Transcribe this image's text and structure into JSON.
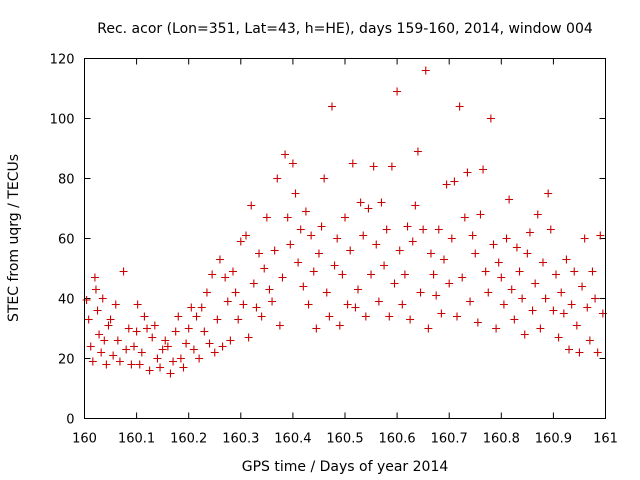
{
  "chart_data": {
    "type": "scatter",
    "title": "Rec. acor (Lon=351, Lat=43, h=HE), days 159-160, 2014, window 004",
    "xlabel": "GPS time / Days of year 2014",
    "ylabel": "STEC from uqrg / TECUs",
    "xlim": [
      160,
      161
    ],
    "ylim": [
      0,
      120
    ],
    "x_ticks": [
      "160",
      "160.1",
      "160.2",
      "160.3",
      "160.4",
      "160.5",
      "160.6",
      "160.7",
      "160.8",
      "160.9",
      "161"
    ],
    "y_ticks": [
      "0",
      "20",
      "40",
      "60",
      "80",
      "100",
      "120"
    ],
    "grid": false,
    "legend": "none",
    "marker": "plus",
    "color": "#cc0000",
    "series": [
      {
        "points": [
          [
            160.004,
            39.5
          ],
          [
            160.008,
            33
          ],
          [
            160.012,
            24
          ],
          [
            160.016,
            19
          ],
          [
            160.02,
            47
          ],
          [
            160.022,
            43
          ],
          [
            160.025,
            36
          ],
          [
            160.028,
            28
          ],
          [
            160.032,
            22
          ],
          [
            160.035,
            40
          ],
          [
            160.038,
            26
          ],
          [
            160.042,
            18
          ],
          [
            160.046,
            31
          ],
          [
            160.05,
            33
          ],
          [
            160.055,
            21
          ],
          [
            160.06,
            38
          ],
          [
            160.064,
            26
          ],
          [
            160.068,
            19
          ],
          [
            160.075,
            49
          ],
          [
            160.08,
            23
          ],
          [
            160.085,
            30
          ],
          [
            160.09,
            18
          ],
          [
            160.095,
            24
          ],
          [
            160.1,
            29
          ],
          [
            160.102,
            38
          ],
          [
            160.106,
            18
          ],
          [
            160.11,
            22
          ],
          [
            160.115,
            34
          ],
          [
            160.12,
            30
          ],
          [
            160.125,
            16
          ],
          [
            160.13,
            27
          ],
          [
            160.135,
            31
          ],
          [
            160.14,
            20
          ],
          [
            160.145,
            17
          ],
          [
            160.15,
            23
          ],
          [
            160.155,
            26
          ],
          [
            160.16,
            24
          ],
          [
            160.165,
            15
          ],
          [
            160.17,
            19
          ],
          [
            160.175,
            29
          ],
          [
            160.18,
            34
          ],
          [
            160.185,
            20
          ],
          [
            160.19,
            17
          ],
          [
            160.195,
            25
          ],
          [
            160.2,
            30
          ],
          [
            160.205,
            37
          ],
          [
            160.21,
            23
          ],
          [
            160.215,
            34
          ],
          [
            160.22,
            20
          ],
          [
            160.225,
            37
          ],
          [
            160.23,
            29
          ],
          [
            160.235,
            42
          ],
          [
            160.24,
            25
          ],
          [
            160.245,
            48
          ],
          [
            160.25,
            22
          ],
          [
            160.255,
            33
          ],
          [
            160.26,
            53
          ],
          [
            160.265,
            24
          ],
          [
            160.27,
            47
          ],
          [
            160.275,
            39
          ],
          [
            160.28,
            26
          ],
          [
            160.285,
            49
          ],
          [
            160.29,
            42
          ],
          [
            160.295,
            33
          ],
          [
            160.3,
            59
          ],
          [
            160.305,
            38
          ],
          [
            160.31,
            61
          ],
          [
            160.315,
            27
          ],
          [
            160.32,
            71
          ],
          [
            160.325,
            45
          ],
          [
            160.33,
            37
          ],
          [
            160.335,
            55
          ],
          [
            160.34,
            34
          ],
          [
            160.345,
            50
          ],
          [
            160.35,
            67
          ],
          [
            160.355,
            43
          ],
          [
            160.36,
            39
          ],
          [
            160.365,
            56
          ],
          [
            160.37,
            80
          ],
          [
            160.375,
            31
          ],
          [
            160.38,
            47
          ],
          [
            160.385,
            88
          ],
          [
            160.39,
            67
          ],
          [
            160.395,
            58
          ],
          [
            160.4,
            85
          ],
          [
            160.405,
            75
          ],
          [
            160.41,
            52
          ],
          [
            160.415,
            63
          ],
          [
            160.42,
            44
          ],
          [
            160.425,
            69
          ],
          [
            160.43,
            38
          ],
          [
            160.435,
            61
          ],
          [
            160.44,
            49
          ],
          [
            160.445,
            30
          ],
          [
            160.45,
            55
          ],
          [
            160.455,
            64
          ],
          [
            160.46,
            80
          ],
          [
            160.465,
            42
          ],
          [
            160.47,
            34
          ],
          [
            160.475,
            104
          ],
          [
            160.48,
            51
          ],
          [
            160.485,
            60
          ],
          [
            160.49,
            31
          ],
          [
            160.495,
            48
          ],
          [
            160.5,
            67
          ],
          [
            160.505,
            38
          ],
          [
            160.51,
            56
          ],
          [
            160.515,
            85
          ],
          [
            160.52,
            37
          ],
          [
            160.525,
            43
          ],
          [
            160.53,
            72
          ],
          [
            160.535,
            61
          ],
          [
            160.54,
            34
          ],
          [
            160.545,
            70
          ],
          [
            160.55,
            48
          ],
          [
            160.555,
            84
          ],
          [
            160.56,
            58
          ],
          [
            160.565,
            39
          ],
          [
            160.57,
            72
          ],
          [
            160.575,
            51
          ],
          [
            160.58,
            63
          ],
          [
            160.585,
            34
          ],
          [
            160.59,
            84
          ],
          [
            160.595,
            45
          ],
          [
            160.6,
            109
          ],
          [
            160.605,
            56
          ],
          [
            160.61,
            38
          ],
          [
            160.615,
            48
          ],
          [
            160.62,
            64
          ],
          [
            160.625,
            33
          ],
          [
            160.63,
            59
          ],
          [
            160.635,
            71
          ],
          [
            160.64,
            89
          ],
          [
            160.645,
            42
          ],
          [
            160.65,
            63
          ],
          [
            160.655,
            116
          ],
          [
            160.66,
            30
          ],
          [
            160.665,
            55
          ],
          [
            160.67,
            48
          ],
          [
            160.675,
            41
          ],
          [
            160.68,
            63
          ],
          [
            160.685,
            35
          ],
          [
            160.69,
            53
          ],
          [
            160.695,
            78
          ],
          [
            160.7,
            45
          ],
          [
            160.705,
            60
          ],
          [
            160.71,
            79
          ],
          [
            160.715,
            34
          ],
          [
            160.72,
            104
          ],
          [
            160.725,
            47
          ],
          [
            160.73,
            67
          ],
          [
            160.735,
            82
          ],
          [
            160.74,
            39
          ],
          [
            160.745,
            61
          ],
          [
            160.75,
            55
          ],
          [
            160.755,
            32
          ],
          [
            160.76,
            68
          ],
          [
            160.765,
            83
          ],
          [
            160.77,
            49
          ],
          [
            160.775,
            42
          ],
          [
            160.78,
            100
          ],
          [
            160.785,
            58
          ],
          [
            160.79,
            30
          ],
          [
            160.795,
            52
          ],
          [
            160.8,
            47
          ],
          [
            160.805,
            38
          ],
          [
            160.81,
            60
          ],
          [
            160.815,
            73
          ],
          [
            160.82,
            43
          ],
          [
            160.825,
            33
          ],
          [
            160.83,
            57
          ],
          [
            160.835,
            49
          ],
          [
            160.84,
            40
          ],
          [
            160.845,
            28
          ],
          [
            160.85,
            55
          ],
          [
            160.855,
            62
          ],
          [
            160.86,
            36
          ],
          [
            160.865,
            45
          ],
          [
            160.87,
            68
          ],
          [
            160.875,
            30
          ],
          [
            160.88,
            52
          ],
          [
            160.885,
            40
          ],
          [
            160.89,
            75
          ],
          [
            160.895,
            63
          ],
          [
            160.9,
            36
          ],
          [
            160.905,
            48
          ],
          [
            160.91,
            27
          ],
          [
            160.915,
            42
          ],
          [
            160.92,
            35
          ],
          [
            160.925,
            53
          ],
          [
            160.93,
            23
          ],
          [
            160.935,
            38
          ],
          [
            160.94,
            49
          ],
          [
            160.945,
            31
          ],
          [
            160.95,
            22
          ],
          [
            160.955,
            44
          ],
          [
            160.96,
            60
          ],
          [
            160.965,
            37
          ],
          [
            160.97,
            26
          ],
          [
            160.975,
            49
          ],
          [
            160.98,
            40
          ],
          [
            160.985,
            22
          ],
          [
            160.99,
            61
          ],
          [
            160.995,
            35
          ]
        ]
      }
    ]
  }
}
